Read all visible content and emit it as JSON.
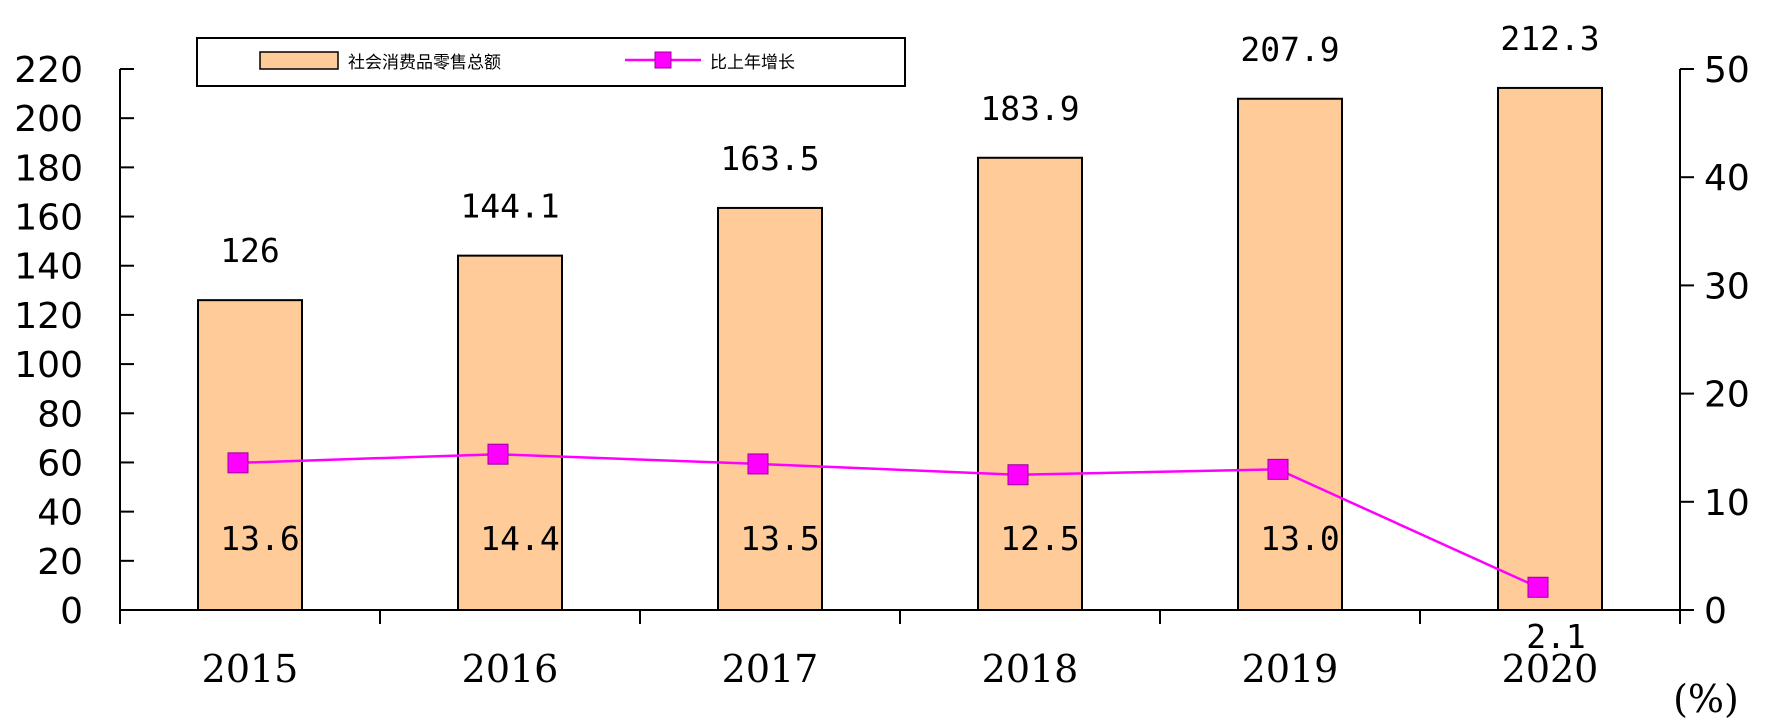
{
  "chart_data": {
    "type": "bar",
    "categories": [
      "2015",
      "2016",
      "2017",
      "2018",
      "2019",
      "2020"
    ],
    "series": [
      {
        "name": "社会消费品零售总额",
        "type": "bar",
        "axis": "left",
        "values": [
          126,
          144.1,
          163.5,
          183.9,
          207.9,
          212.3
        ],
        "labels": [
          "126",
          "144.1",
          "163.5",
          "183.9",
          "207.9",
          "212.3"
        ],
        "color": "#FFCC99"
      },
      {
        "name": "比上年增长",
        "type": "line",
        "axis": "right",
        "values": [
          13.6,
          14.4,
          13.5,
          12.5,
          13.0,
          2.1
        ],
        "labels": [
          "13.6",
          "14.4",
          "13.5",
          "12.5",
          "13.0",
          "2.1"
        ],
        "color": "#FF00FF"
      }
    ],
    "y_left": {
      "min": 0,
      "max": 220,
      "ticks": [
        "0",
        "20",
        "40",
        "60",
        "80",
        "100",
        "120",
        "140",
        "160",
        "180",
        "200",
        "220"
      ]
    },
    "y_right": {
      "min": 0,
      "max": 50,
      "ticks": [
        "0",
        "10",
        "20",
        "30",
        "40",
        "50"
      ],
      "unit": "(%)"
    },
    "legend": "top-left",
    "grid": false
  }
}
